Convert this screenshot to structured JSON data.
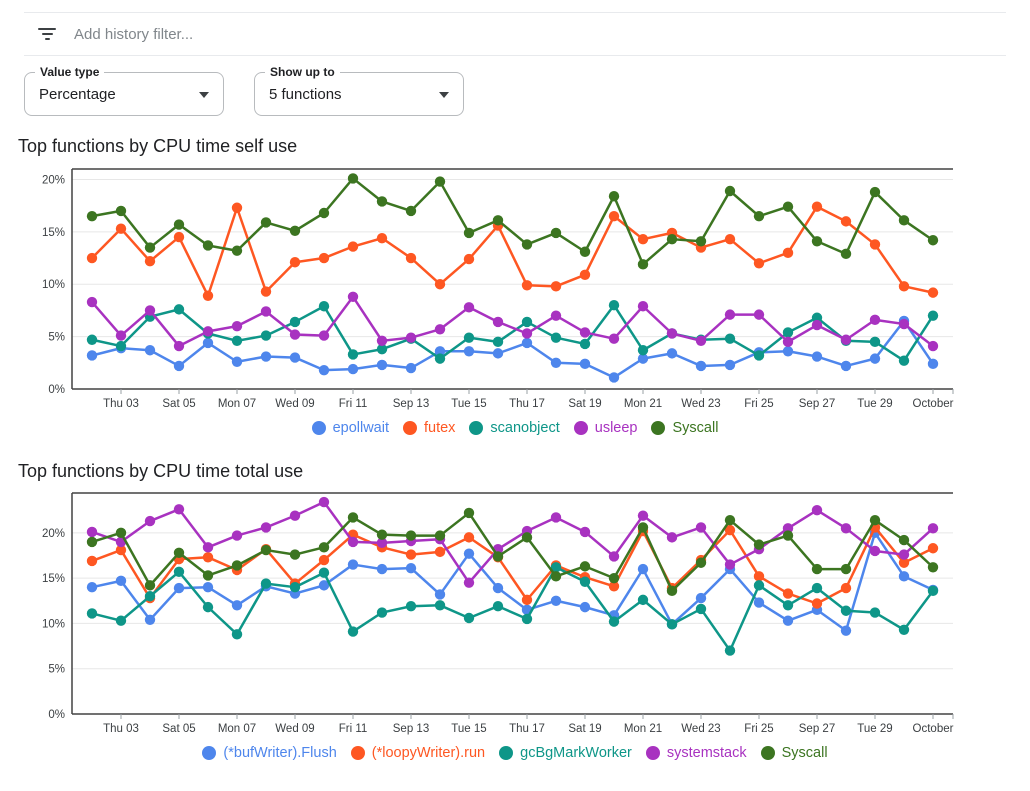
{
  "filter_bar": {
    "placeholder": "Add history filter...",
    "icon": "filter-list-icon"
  },
  "controls": [
    {
      "label": "Value type",
      "value": "Percentage"
    },
    {
      "label": "Show up to",
      "value": "5 functions"
    }
  ],
  "x_tick_labels": [
    "Thu 03",
    "Sat 05",
    "Mon 07",
    "Wed 09",
    "Fri 11",
    "Sep 13",
    "Tue 15",
    "Thu 17",
    "Sat 19",
    "Mon 21",
    "Wed 23",
    "Fri 25",
    "Sep 27",
    "Tue 29",
    "October"
  ],
  "y_tick_labels": [
    "0%",
    "5%",
    "10%",
    "15%",
    "20%"
  ],
  "colors": {
    "blue": "#4e86ec",
    "orange": "#fe5722",
    "teal": "#0e9688",
    "purple": "#a832c0",
    "green": "#3c7521",
    "grid": "#e7e7e7",
    "axis": "#424242",
    "tick": "#9aa0a6",
    "label": "#3c4043"
  },
  "chart_data": [
    {
      "type": "line",
      "title": "Top functions by CPU time self use",
      "xlabel": "",
      "ylabel": "",
      "ylim": [
        0,
        21
      ],
      "y_ticks": [
        0,
        5,
        10,
        15,
        20
      ],
      "grid": true,
      "legend_position": "bottom",
      "x_tick_labels": [
        "Thu 03",
        "Sat 05",
        "Mon 07",
        "Wed 09",
        "Fri 11",
        "Sep 13",
        "Tue 15",
        "Thu 17",
        "Sat 19",
        "Mon 21",
        "Wed 23",
        "Fri 25",
        "Sep 27",
        "Tue 29",
        "October"
      ],
      "series": [
        {
          "name": "epollwait",
          "color": "#4e86ec",
          "values": [
            3.2,
            3.9,
            3.7,
            2.2,
            4.4,
            2.6,
            3.1,
            3.0,
            1.8,
            1.9,
            2.3,
            2.0,
            3.6,
            3.6,
            3.4,
            4.4,
            2.5,
            2.4,
            1.1,
            2.9,
            3.4,
            2.2,
            2.3,
            3.5,
            3.6,
            3.1,
            2.2,
            2.9,
            6.5,
            2.4
          ]
        },
        {
          "name": "futex",
          "color": "#fe5722",
          "values": [
            12.5,
            15.3,
            12.2,
            14.5,
            8.9,
            17.3,
            9.3,
            12.1,
            12.5,
            13.6,
            14.4,
            12.5,
            10.0,
            12.4,
            15.6,
            9.9,
            9.8,
            10.9,
            16.5,
            14.3,
            14.9,
            13.5,
            14.3,
            12.0,
            13.0,
            17.4,
            16.0,
            13.8,
            9.8,
            9.2
          ]
        },
        {
          "name": "scanobject",
          "color": "#0e9688",
          "values": [
            4.7,
            4.1,
            6.9,
            7.6,
            5.3,
            4.6,
            5.1,
            6.4,
            7.9,
            3.3,
            3.8,
            4.8,
            2.9,
            4.9,
            4.5,
            6.4,
            4.9,
            4.3,
            8.0,
            3.7,
            5.3,
            4.7,
            4.8,
            3.2,
            5.4,
            6.8,
            4.6,
            4.5,
            2.7,
            7.0
          ]
        },
        {
          "name": "usleep",
          "color": "#a832c0",
          "values": [
            8.3,
            5.1,
            7.5,
            4.1,
            5.5,
            6.0,
            7.4,
            5.2,
            5.1,
            8.8,
            4.6,
            4.9,
            5.7,
            7.8,
            6.4,
            5.3,
            7.0,
            5.4,
            4.8,
            7.9,
            5.3,
            4.6,
            7.1,
            7.1,
            4.5,
            6.1,
            4.7,
            6.6,
            6.2,
            4.1
          ]
        },
        {
          "name": "Syscall",
          "color": "#3c7521",
          "values": [
            16.5,
            17.0,
            13.5,
            15.7,
            13.7,
            13.2,
            15.9,
            15.1,
            16.8,
            20.1,
            17.9,
            17.0,
            19.8,
            14.9,
            16.1,
            13.8,
            14.9,
            13.1,
            18.4,
            11.9,
            14.3,
            14.1,
            18.9,
            16.5,
            17.4,
            14.1,
            12.9,
            18.8,
            16.1,
            14.2
          ]
        }
      ]
    },
    {
      "type": "line",
      "title": "Top functions by CPU time total use",
      "xlabel": "",
      "ylabel": "",
      "ylim": [
        0,
        24.4
      ],
      "y_ticks": [
        0,
        5,
        10,
        15,
        20
      ],
      "grid": true,
      "legend_position": "bottom",
      "x_tick_labels": [
        "Thu 03",
        "Sat 05",
        "Mon 07",
        "Wed 09",
        "Fri 11",
        "Sep 13",
        "Tue 15",
        "Thu 17",
        "Sat 19",
        "Mon 21",
        "Wed 23",
        "Fri 25",
        "Sep 27",
        "Tue 29",
        "October"
      ],
      "series": [
        {
          "name": "(*bufWriter).Flush",
          "color": "#4e86ec",
          "values": [
            14.0,
            14.7,
            10.4,
            13.9,
            14.0,
            12.0,
            14.1,
            13.3,
            14.2,
            16.5,
            16.0,
            16.1,
            13.2,
            17.7,
            13.9,
            11.5,
            12.5,
            11.8,
            10.9,
            16.0,
            9.9,
            12.8,
            16.0,
            12.3,
            10.3,
            11.5,
            9.2,
            20.0,
            15.2,
            13.7
          ]
        },
        {
          "name": "(*loopyWriter).run",
          "color": "#fe5722",
          "values": [
            16.9,
            18.1,
            12.8,
            17.1,
            17.3,
            15.9,
            18.2,
            14.4,
            17.0,
            19.8,
            18.4,
            17.6,
            17.9,
            19.5,
            17.3,
            12.6,
            16.4,
            15.1,
            14.1,
            20.2,
            13.9,
            17.0,
            20.3,
            15.2,
            13.3,
            12.2,
            13.9,
            20.6,
            16.7,
            18.3
          ]
        },
        {
          "name": "gcBgMarkWorker",
          "color": "#0e9688",
          "values": [
            11.1,
            10.3,
            13.0,
            15.7,
            11.8,
            8.8,
            14.4,
            14.0,
            15.6,
            9.1,
            11.2,
            11.9,
            12.0,
            10.6,
            11.9,
            10.5,
            16.2,
            14.6,
            10.2,
            12.6,
            9.9,
            11.6,
            7.0,
            14.2,
            12.0,
            13.9,
            11.4,
            11.2,
            9.3,
            13.6
          ]
        },
        {
          "name": "systemstack",
          "color": "#a832c0",
          "values": [
            20.1,
            19.0,
            21.3,
            22.6,
            18.4,
            19.7,
            20.6,
            21.9,
            23.4,
            19.0,
            18.9,
            19.1,
            19.3,
            14.5,
            18.2,
            20.2,
            21.7,
            20.1,
            17.4,
            21.9,
            19.5,
            20.6,
            16.5,
            18.2,
            20.5,
            22.5,
            20.5,
            18.0,
            17.6,
            20.5
          ]
        },
        {
          "name": "Syscall",
          "color": "#3c7521",
          "values": [
            19.0,
            20.0,
            14.2,
            17.8,
            15.3,
            16.4,
            18.1,
            17.6,
            18.4,
            21.7,
            19.8,
            19.7,
            19.7,
            22.2,
            17.4,
            19.5,
            15.2,
            16.3,
            15.0,
            20.6,
            13.6,
            16.7,
            21.4,
            18.7,
            19.7,
            16.0,
            16.0,
            21.4,
            19.2,
            16.2
          ]
        }
      ]
    }
  ]
}
